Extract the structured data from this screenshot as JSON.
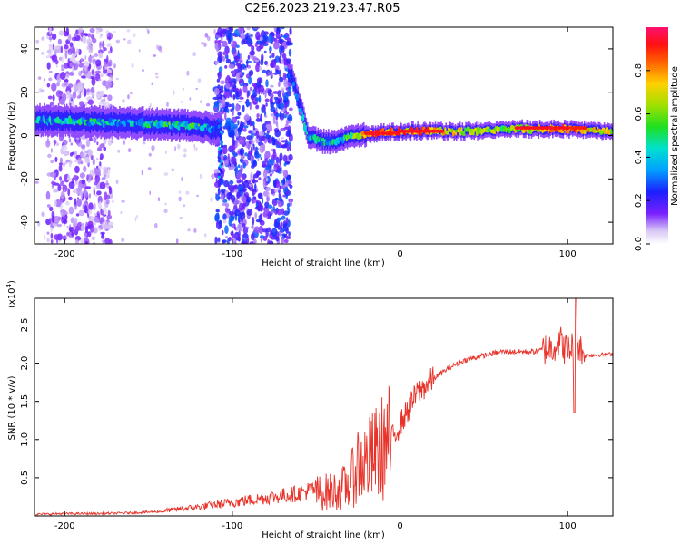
{
  "title": "C2E6.2023.219.23.47.R05",
  "chart_data": [
    {
      "type": "heatmap",
      "xlabel": "Height of straight line (km)",
      "ylabel": "Frequency (Hz)",
      "xlim": [
        -218,
        127
      ],
      "ylim": [
        -50,
        50
      ],
      "xticks": [
        -200,
        -100,
        0,
        100
      ],
      "yticks": [
        -40,
        -20,
        0,
        20,
        40
      ],
      "colorbar": {
        "label": "Normalized spectral amplitude",
        "range": [
          0,
          1
        ],
        "ticks": [
          "0.0",
          "0.2",
          "0.4",
          "0.6",
          "0.8"
        ],
        "tick_values": [
          0.0,
          0.2,
          0.4,
          0.6,
          0.8
        ]
      },
      "ridge": {
        "x": [
          -218,
          -200,
          -180,
          -160,
          -140,
          -120,
          -110,
          -65,
          -55,
          -45,
          -35,
          -25,
          -15,
          0,
          20,
          40,
          60,
          80,
          100,
          127
        ],
        "freq": [
          7,
          7,
          6,
          6,
          5,
          4,
          3,
          28,
          0,
          -3,
          -2,
          0,
          1,
          2,
          2,
          2,
          3,
          3,
          3,
          2
        ],
        "amplitude": [
          0.35,
          0.4,
          0.4,
          0.35,
          0.45,
          0.45,
          0.3,
          0.2,
          0.4,
          0.4,
          0.45,
          0.6,
          0.9,
          0.8,
          0.8,
          0.6,
          0.6,
          0.65,
          0.9,
          0.6
        ]
      },
      "noise_bands_km": [
        [
          -210,
          -172
        ],
        [
          -110,
          -65
        ]
      ]
    },
    {
      "type": "line",
      "xlabel": "Height of straight line (km)",
      "ylabel": "SNR (10 * v/v)",
      "y_scale_note": "(x10",
      "y_scale_exp": "4",
      "y_scale_close": ")",
      "xlim": [
        -218,
        127
      ],
      "ylim": [
        0,
        2.85
      ],
      "xticks": [
        -200,
        -100,
        0,
        100
      ],
      "yticks": [
        0.5,
        1.0,
        1.5,
        2.0,
        2.5
      ],
      "ytick_labels": [
        "0.5",
        "1.0",
        "1.5",
        "2.0",
        "2.5"
      ],
      "color": "#e8332a",
      "series": [
        {
          "x": [
            -218,
            -200,
            -180,
            -160,
            -140,
            -120,
            -100,
            -80,
            -60,
            -50,
            -40,
            -30,
            -25,
            -20,
            -15,
            -10,
            -5,
            0,
            5,
            10,
            20,
            30,
            40,
            60,
            80,
            90,
            95,
            100,
            105,
            110,
            127
          ],
          "values": [
            0.02,
            0.03,
            0.03,
            0.04,
            0.06,
            0.1,
            0.15,
            0.2,
            0.25,
            0.3,
            0.32,
            0.4,
            0.7,
            0.7,
            0.8,
            0.9,
            1.0,
            1.2,
            1.4,
            1.6,
            1.8,
            1.95,
            2.05,
            2.15,
            2.15,
            2.2,
            2.3,
            2.15,
            2.3,
            2.1,
            2.12
          ]
        }
      ]
    }
  ]
}
